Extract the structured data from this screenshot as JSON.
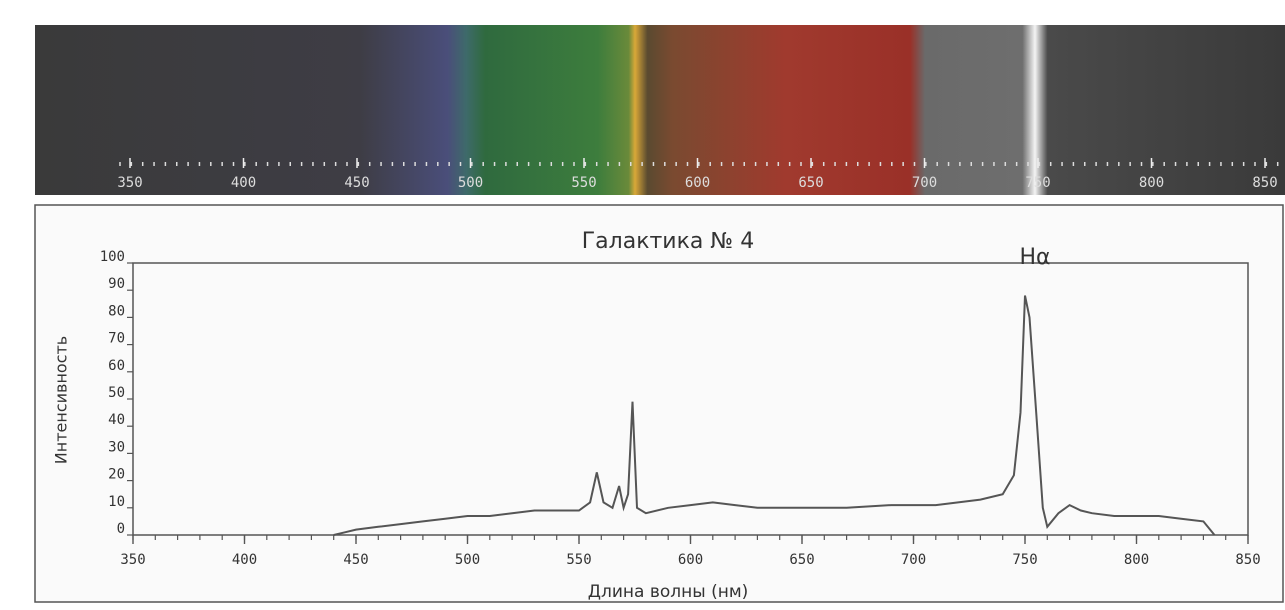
{
  "chart_data": {
    "type": "line",
    "title": "Галактика № 4",
    "annotation": "Hα",
    "xlabel": "Длина волны (нм)",
    "ylabel": "Интенсивность",
    "color": "#555555",
    "x": [
      440,
      445,
      450,
      460,
      470,
      480,
      490,
      500,
      510,
      520,
      530,
      540,
      550,
      555,
      558,
      561,
      565,
      568,
      570,
      572,
      574,
      576,
      580,
      590,
      600,
      610,
      620,
      630,
      650,
      670,
      690,
      700,
      710,
      720,
      730,
      740,
      745,
      748,
      750,
      752,
      755,
      758,
      760,
      765,
      770,
      775,
      780,
      790,
      800,
      810,
      820,
      830,
      835
    ],
    "values": [
      0,
      1,
      2,
      3,
      4,
      5,
      6,
      7,
      7,
      8,
      9,
      9,
      9,
      12,
      23,
      12,
      10,
      18,
      10,
      15,
      49,
      10,
      8,
      10,
      11,
      12,
      11,
      10,
      10,
      10,
      11,
      11,
      11,
      12,
      13,
      15,
      22,
      45,
      88,
      80,
      45,
      10,
      3,
      8,
      11,
      9,
      8,
      7,
      7,
      7,
      6,
      5,
      0
    ],
    "xlim": [
      350,
      850
    ],
    "xticks": [
      350,
      400,
      450,
      500,
      550,
      600,
      650,
      700,
      750,
      800,
      850
    ],
    "ylim": [
      0,
      100
    ],
    "yticks": [
      0,
      10,
      20,
      30,
      40,
      50,
      60,
      70,
      80,
      90,
      100
    ],
    "spectrum_ticks": [
      350,
      400,
      450,
      500,
      550,
      600,
      650,
      700,
      750,
      800,
      850
    ]
  }
}
